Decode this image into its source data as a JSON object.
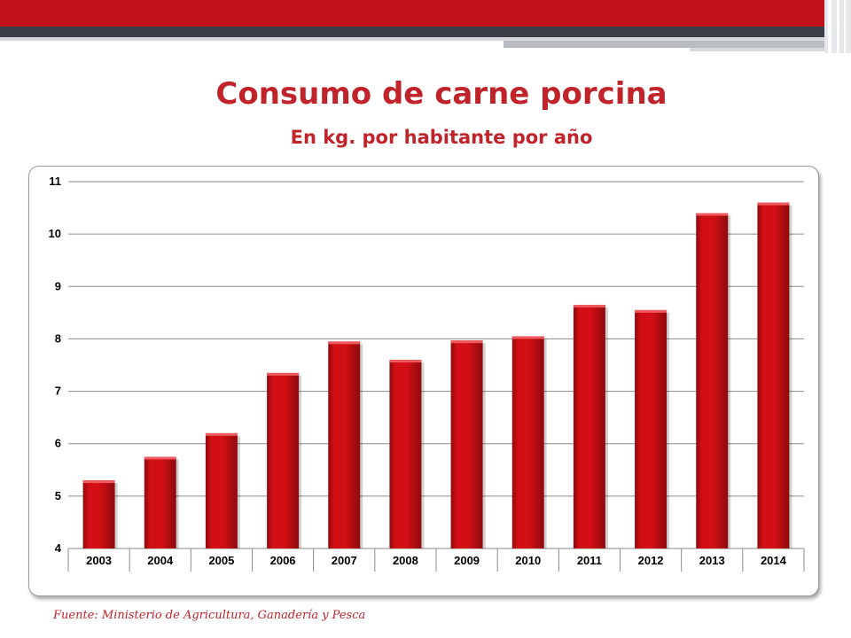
{
  "slide": {
    "title": "Consumo de carne porcina",
    "subtitle": "En kg. por habitante por año",
    "source": "Fuente: Ministerio de Agricultura, Ganadería y Pesca"
  },
  "colors": {
    "accent": "#c1232b",
    "bar": "#d10f14",
    "bar_dark": "#8e0a0d",
    "band_dark": "#3a3f47",
    "band_red": "#c1121a"
  },
  "chart_data": {
    "type": "bar",
    "title": "",
    "xlabel": "",
    "ylabel": "",
    "categories": [
      "2003",
      "2004",
      "2005",
      "2006",
      "2007",
      "2008",
      "2009",
      "2010",
      "2011",
      "2012",
      "2013",
      "2014"
    ],
    "values": [
      5.3,
      5.75,
      6.2,
      7.35,
      7.95,
      7.6,
      7.97,
      8.05,
      8.65,
      8.55,
      10.4,
      10.6
    ],
    "ylim": [
      4,
      11
    ],
    "yticks": [
      4,
      5,
      6,
      7,
      8,
      9,
      10,
      11
    ],
    "grid": true,
    "legend": "none"
  }
}
